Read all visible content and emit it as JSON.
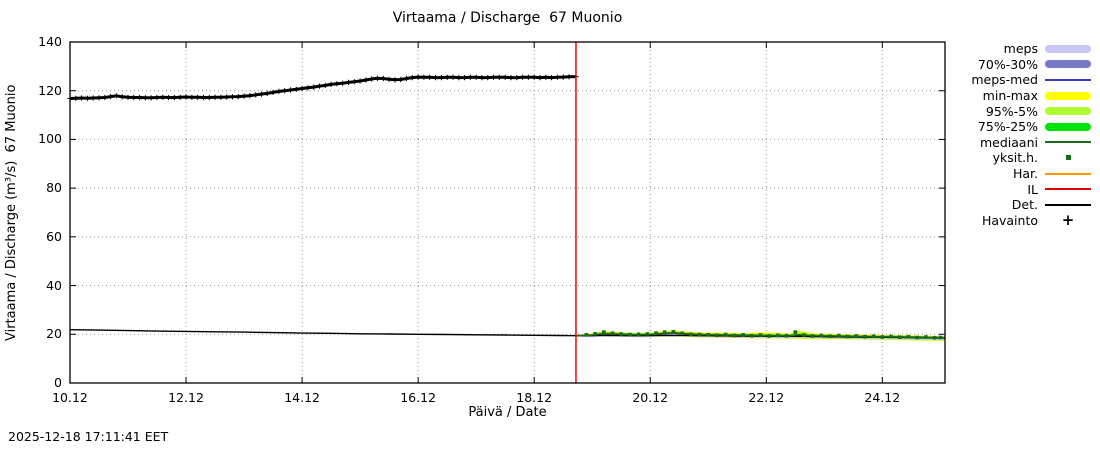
{
  "title": "Virtaama / Discharge  67 Muonio",
  "ylabel": "Virtaama / Discharge (m³/s)  67 Muonio",
  "xlabel": "Päivä / Date",
  "timestamp": "2025-12-18 17:11:41 EET",
  "colors": {
    "meps": "#c6c6f7",
    "band7030": "#7878c8",
    "mepsmed": "#3c3cc8",
    "minmax": "#ffff00",
    "band955": "#adff2f",
    "band7525": "#00e400",
    "mediaani": "#156e15",
    "yksith": "#156e15",
    "har": "#ff9900",
    "il": "#dd0000",
    "det": "#000000",
    "havainto": "#000000",
    "now_line": "#ff0000",
    "grid": "#909090"
  },
  "legend": [
    {
      "label": "meps",
      "type": "band",
      "color_key": "meps"
    },
    {
      "label": "70%-30%",
      "type": "band",
      "color_key": "band7030"
    },
    {
      "label": "meps-med",
      "type": "line",
      "color_key": "mepsmed"
    },
    {
      "label": "min-max",
      "type": "band",
      "color_key": "minmax"
    },
    {
      "label": "95%-5%",
      "type": "band",
      "color_key": "band955"
    },
    {
      "label": "75%-25%",
      "type": "band",
      "color_key": "band7525"
    },
    {
      "label": "mediaani",
      "type": "line",
      "color_key": "mediaani"
    },
    {
      "label": "yksit.h.",
      "type": "square",
      "color_key": "yksith"
    },
    {
      "label": "Har.",
      "type": "line",
      "color_key": "har"
    },
    {
      "label": "IL",
      "type": "line",
      "color_key": "il"
    },
    {
      "label": "Det.",
      "type": "line",
      "color_key": "det"
    },
    {
      "label": "Havainto",
      "type": "plus",
      "color_key": "havainto"
    }
  ],
  "chart_data": {
    "type": "line",
    "title": "Virtaama / Discharge  67 Muonio",
    "xlabel": "Päivä / Date",
    "ylabel": "Virtaama / Discharge (m³/s)  67 Muonio",
    "xlim": [
      10.0,
      25.08
    ],
    "ylim": [
      0,
      140
    ],
    "grid": true,
    "legend_position": "right-outside",
    "now_x": 18.72,
    "xticks": [
      [
        10,
        "10.12"
      ],
      [
        12,
        "12.12"
      ],
      [
        14,
        "14.12"
      ],
      [
        16,
        "16.12"
      ],
      [
        18,
        "18.12"
      ],
      [
        20,
        "20.12"
      ],
      [
        22,
        "22.12"
      ],
      [
        24,
        "24.12"
      ]
    ],
    "yticks": [
      0,
      20,
      40,
      60,
      80,
      100,
      120,
      140
    ],
    "series": {
      "havainto": {
        "name": "Havainto",
        "points": [
          [
            10.0,
            116.8
          ],
          [
            10.1,
            116.9
          ],
          [
            10.2,
            117.0
          ],
          [
            10.3,
            116.9
          ],
          [
            10.4,
            117.0
          ],
          [
            10.5,
            117.1
          ],
          [
            10.6,
            117.2
          ],
          [
            10.7,
            117.6
          ],
          [
            10.8,
            117.9
          ],
          [
            10.9,
            117.5
          ],
          [
            11.0,
            117.3
          ],
          [
            11.1,
            117.2
          ],
          [
            11.2,
            117.2
          ],
          [
            11.3,
            117.1
          ],
          [
            11.4,
            117.1
          ],
          [
            11.5,
            117.2
          ],
          [
            11.6,
            117.3
          ],
          [
            11.7,
            117.2
          ],
          [
            11.8,
            117.2
          ],
          [
            11.9,
            117.3
          ],
          [
            12.0,
            117.4
          ],
          [
            12.1,
            117.3
          ],
          [
            12.2,
            117.3
          ],
          [
            12.3,
            117.2
          ],
          [
            12.4,
            117.2
          ],
          [
            12.5,
            117.3
          ],
          [
            12.6,
            117.3
          ],
          [
            12.7,
            117.4
          ],
          [
            12.8,
            117.5
          ],
          [
            12.9,
            117.6
          ],
          [
            13.0,
            117.8
          ],
          [
            13.1,
            118.0
          ],
          [
            13.2,
            118.3
          ],
          [
            13.3,
            118.6
          ],
          [
            13.4,
            118.9
          ],
          [
            13.5,
            119.3
          ],
          [
            13.6,
            119.7
          ],
          [
            13.7,
            120.0
          ],
          [
            13.8,
            120.3
          ],
          [
            13.9,
            120.6
          ],
          [
            14.0,
            120.9
          ],
          [
            14.1,
            121.2
          ],
          [
            14.2,
            121.5
          ],
          [
            14.3,
            121.9
          ],
          [
            14.4,
            122.2
          ],
          [
            14.5,
            122.6
          ],
          [
            14.6,
            122.9
          ],
          [
            14.7,
            123.1
          ],
          [
            14.8,
            123.4
          ],
          [
            14.9,
            123.7
          ],
          [
            15.0,
            124.0
          ],
          [
            15.1,
            124.4
          ],
          [
            15.2,
            124.8
          ],
          [
            15.3,
            125.1
          ],
          [
            15.4,
            125.0
          ],
          [
            15.5,
            124.7
          ],
          [
            15.6,
            124.5
          ],
          [
            15.7,
            124.6
          ],
          [
            15.8,
            125.0
          ],
          [
            15.9,
            125.4
          ],
          [
            16.0,
            125.6
          ],
          [
            16.1,
            125.5
          ],
          [
            16.2,
            125.5
          ],
          [
            16.3,
            125.4
          ],
          [
            16.4,
            125.4
          ],
          [
            16.5,
            125.5
          ],
          [
            16.6,
            125.5
          ],
          [
            16.7,
            125.4
          ],
          [
            16.8,
            125.4
          ],
          [
            16.9,
            125.5
          ],
          [
            17.0,
            125.5
          ],
          [
            17.1,
            125.4
          ],
          [
            17.2,
            125.4
          ],
          [
            17.3,
            125.5
          ],
          [
            17.4,
            125.5
          ],
          [
            17.5,
            125.5
          ],
          [
            17.6,
            125.4
          ],
          [
            17.7,
            125.4
          ],
          [
            17.8,
            125.5
          ],
          [
            17.9,
            125.5
          ],
          [
            18.0,
            125.5
          ],
          [
            18.1,
            125.4
          ],
          [
            18.2,
            125.5
          ],
          [
            18.3,
            125.4
          ],
          [
            18.4,
            125.5
          ],
          [
            18.5,
            125.6
          ],
          [
            18.6,
            125.7
          ],
          [
            18.72,
            125.8
          ]
        ]
      },
      "det": {
        "name": "Det.",
        "points": [
          [
            10.0,
            21.9
          ],
          [
            10.5,
            21.7
          ],
          [
            11.0,
            21.5
          ],
          [
            11.5,
            21.3
          ],
          [
            12.0,
            21.2
          ],
          [
            12.5,
            21.0
          ],
          [
            13.0,
            20.9
          ],
          [
            13.5,
            20.7
          ],
          [
            14.0,
            20.5
          ],
          [
            14.5,
            20.4
          ],
          [
            15.0,
            20.2
          ],
          [
            15.5,
            20.1
          ],
          [
            16.0,
            20.0
          ],
          [
            16.5,
            19.9
          ],
          [
            17.0,
            19.8
          ],
          [
            17.5,
            19.7
          ],
          [
            18.0,
            19.6
          ],
          [
            18.4,
            19.5
          ],
          [
            18.72,
            19.4
          ],
          [
            19.0,
            19.5
          ],
          [
            19.4,
            19.5
          ],
          [
            19.8,
            19.4
          ],
          [
            20.2,
            19.5
          ],
          [
            20.6,
            19.5
          ],
          [
            21.0,
            19.4
          ],
          [
            21.5,
            19.3
          ],
          [
            22.0,
            19.2
          ],
          [
            22.5,
            19.2
          ],
          [
            23.0,
            19.0
          ],
          [
            23.5,
            18.9
          ],
          [
            24.0,
            18.8
          ],
          [
            24.5,
            18.7
          ],
          [
            25.08,
            18.5
          ]
        ]
      },
      "forecast_x": [
        18.72,
        19.0,
        19.2,
        19.4,
        19.6,
        19.8,
        20.0,
        20.2,
        20.4,
        20.6,
        20.8,
        21.0,
        21.3,
        21.6,
        22.0,
        22.4,
        22.55,
        22.8,
        23.2,
        23.6,
        24.0,
        24.4,
        24.8,
        25.08
      ],
      "minmax": {
        "upper": [
          19.6,
          20.4,
          21.4,
          21.0,
          20.7,
          20.5,
          20.7,
          21.2,
          21.7,
          21.2,
          20.9,
          20.7,
          20.6,
          20.5,
          20.9,
          20.3,
          21.6,
          20.4,
          20.1,
          19.9,
          19.7,
          19.6,
          19.4,
          19.2
        ],
        "lower": [
          19.2,
          19.1,
          19.3,
          19.1,
          18.9,
          18.8,
          18.9,
          19.1,
          19.3,
          19.0,
          18.7,
          18.6,
          18.5,
          18.4,
          18.3,
          18.1,
          18.2,
          18.0,
          17.9,
          17.8,
          17.6,
          17.5,
          17.3,
          17.2
        ]
      },
      "p95_5": {
        "upper": [
          19.5,
          20.1,
          21.1,
          20.7,
          20.4,
          20.2,
          20.4,
          20.9,
          21.4,
          20.9,
          20.6,
          20.4,
          20.3,
          20.2,
          20.5,
          20.0,
          21.2,
          20.1,
          19.8,
          19.6,
          19.4,
          19.3,
          19.1,
          19.0
        ],
        "lower": [
          19.3,
          19.3,
          19.5,
          19.3,
          19.1,
          19.0,
          19.1,
          19.3,
          19.5,
          19.2,
          18.9,
          18.8,
          18.7,
          18.6,
          18.5,
          18.3,
          18.4,
          18.2,
          18.1,
          18.0,
          17.8,
          17.7,
          17.5,
          17.4
        ]
      },
      "p75_25": {
        "upper": [
          19.5,
          20.2,
          20.8,
          20.6,
          20.4,
          20.3,
          20.4,
          20.8,
          21.1,
          20.7,
          20.4,
          20.3,
          20.2,
          20.1,
          20.0,
          19.9,
          20.3,
          19.9,
          19.8,
          19.6,
          19.5,
          19.4,
          19.2,
          19.1
        ],
        "lower": [
          19.3,
          19.2,
          19.8,
          19.6,
          19.4,
          19.3,
          19.4,
          19.8,
          20.1,
          19.7,
          19.4,
          19.3,
          19.2,
          19.1,
          19.0,
          18.9,
          19.3,
          18.9,
          18.8,
          18.6,
          18.5,
          18.4,
          18.2,
          18.1
        ]
      },
      "meps": {
        "upper": [
          19.5,
          20.0,
          20.6,
          20.4,
          20.2,
          20.1,
          20.2,
          20.6,
          20.9,
          20.5,
          20.2,
          20.1,
          20.0,
          19.9,
          19.8,
          19.7,
          20.1,
          19.7,
          19.6,
          19.4,
          19.3,
          19.2,
          19.0,
          18.9
        ],
        "lower": [
          19.2,
          18.7,
          19.3,
          19.1,
          18.9,
          18.8,
          18.9,
          19.3,
          19.6,
          19.2,
          18.9,
          18.8,
          18.7,
          18.6,
          18.5,
          18.4,
          18.8,
          18.4,
          18.3,
          18.1,
          18.0,
          17.9,
          17.7,
          17.6
        ]
      },
      "p70_30": {
        "upper": [
          19.5,
          19.9,
          20.5,
          20.3,
          20.1,
          20.0,
          20.1,
          20.5,
          20.8,
          20.4,
          20.1,
          20.0,
          19.9,
          19.8,
          19.7,
          19.6,
          20.0,
          19.6,
          19.5,
          19.3,
          19.2,
          19.1,
          18.9,
          18.8
        ],
        "lower": [
          19.3,
          19.4,
          20.0,
          19.8,
          19.6,
          19.5,
          19.6,
          20.0,
          20.3,
          19.9,
          19.6,
          19.5,
          19.4,
          19.3,
          19.2,
          19.1,
          19.5,
          19.1,
          19.0,
          18.8,
          18.7,
          18.6,
          18.4,
          18.3
        ]
      },
      "meps_med": [
        19.3,
        19.5,
        20.1,
        19.9,
        19.7,
        19.6,
        19.7,
        20.1,
        20.4,
        20.0,
        19.7,
        19.6,
        19.5,
        19.4,
        19.3,
        19.2,
        19.6,
        19.2,
        19.1,
        18.9,
        18.8,
        18.7,
        18.5,
        18.4
      ],
      "mediaani": [
        19.4,
        19.7,
        20.3,
        20.1,
        19.9,
        19.8,
        19.9,
        20.3,
        20.6,
        20.2,
        19.9,
        19.8,
        19.7,
        19.6,
        19.5,
        19.4,
        19.8,
        19.4,
        19.3,
        19.1,
        19.0,
        18.9,
        18.7,
        18.6
      ],
      "har": [
        19.5,
        19.9,
        20.5,
        20.3,
        20.0,
        19.9,
        20.0,
        20.5,
        20.8,
        20.4,
        20.1,
        20.0,
        19.9,
        19.8,
        19.7,
        19.5,
        20.0,
        19.6,
        19.4,
        19.3,
        19.2,
        19.0,
        18.9,
        18.8
      ],
      "il": [
        19.4,
        19.6,
        20.2,
        20.0,
        19.8,
        19.7,
        19.8,
        20.2,
        20.5,
        20.1,
        19.8,
        19.7,
        19.6,
        19.5,
        19.4,
        19.3,
        19.7,
        19.3,
        19.2,
        19.0,
        18.9,
        18.8,
        18.6,
        18.5
      ],
      "yksith": [
        [
          18.9,
          19.8
        ],
        [
          19.05,
          20.2
        ],
        [
          19.2,
          20.9
        ],
        [
          19.35,
          20.4
        ],
        [
          19.5,
          20.1
        ],
        [
          19.65,
          19.9
        ],
        [
          19.8,
          20.0
        ],
        [
          19.95,
          20.1
        ],
        [
          20.1,
          20.5
        ],
        [
          20.25,
          20.9
        ],
        [
          20.4,
          21.0
        ],
        [
          20.55,
          20.4
        ],
        [
          20.7,
          20.0
        ],
        [
          20.85,
          19.9
        ],
        [
          21.0,
          19.8
        ],
        [
          21.15,
          19.6
        ],
        [
          21.3,
          19.9
        ],
        [
          21.45,
          19.5
        ],
        [
          21.6,
          19.8
        ],
        [
          21.75,
          19.4
        ],
        [
          21.9,
          19.7
        ],
        [
          22.05,
          19.3
        ],
        [
          22.2,
          19.6
        ],
        [
          22.35,
          19.4
        ],
        [
          22.5,
          20.9
        ],
        [
          22.65,
          19.7
        ],
        [
          22.8,
          19.3
        ],
        [
          22.95,
          19.5
        ],
        [
          23.1,
          19.2
        ],
        [
          23.25,
          19.5
        ],
        [
          23.4,
          19.1
        ],
        [
          23.55,
          19.3
        ],
        [
          23.7,
          19.0
        ],
        [
          23.85,
          19.2
        ],
        [
          24.0,
          18.9
        ],
        [
          24.15,
          19.1
        ],
        [
          24.3,
          18.8
        ],
        [
          24.45,
          19.0
        ],
        [
          24.6,
          18.7
        ],
        [
          24.75,
          18.9
        ],
        [
          24.9,
          18.6
        ],
        [
          25.0,
          18.7
        ]
      ]
    }
  }
}
